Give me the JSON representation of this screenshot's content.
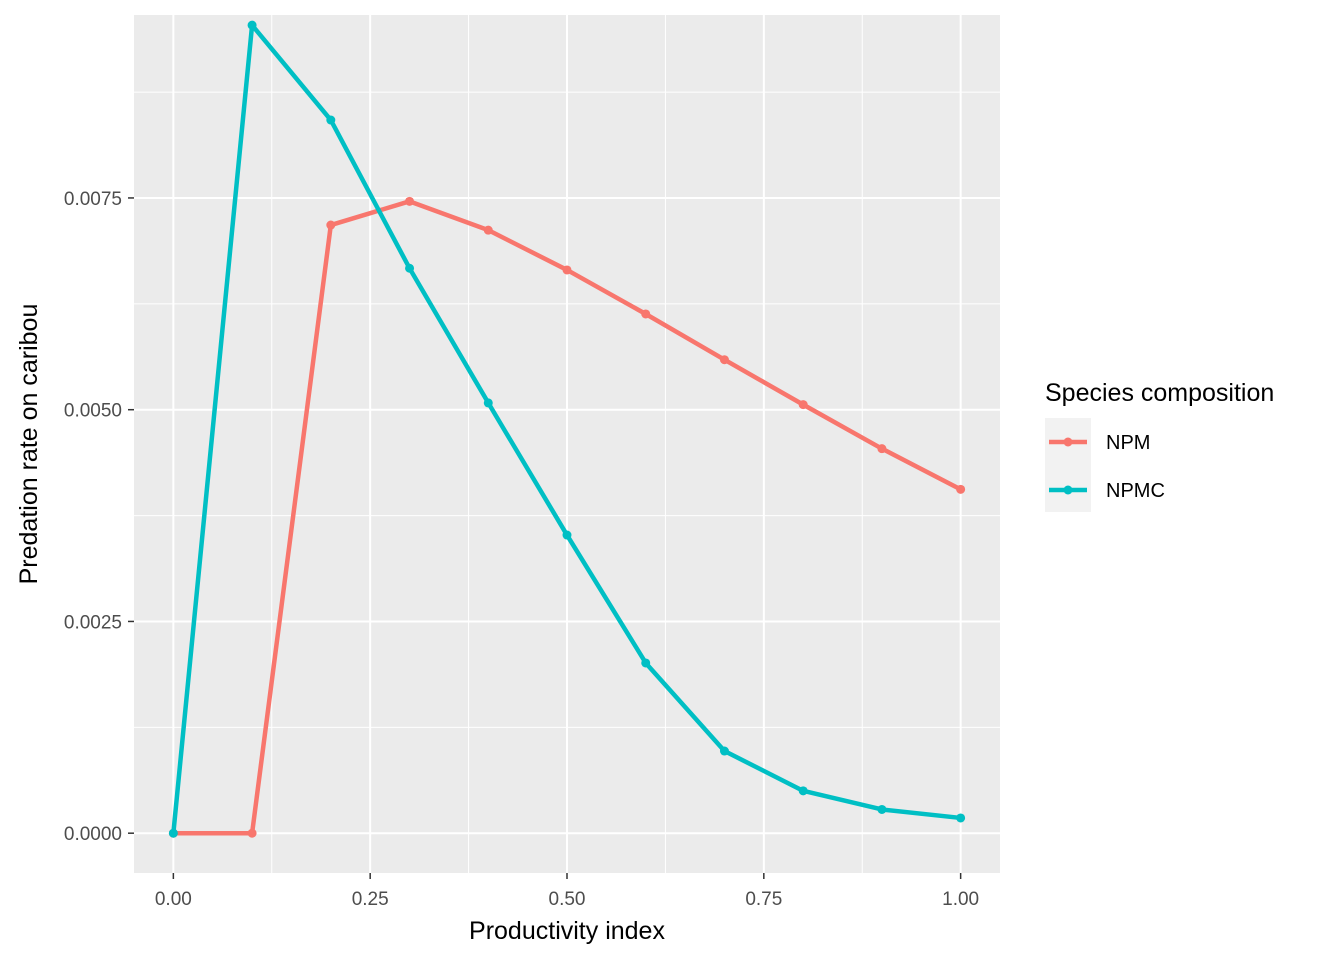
{
  "chart_data": {
    "type": "line",
    "title": "",
    "xlabel": "Productivity index",
    "ylabel": "Predation rate on caribou",
    "x": [
      0.0,
      0.1,
      0.2,
      0.3,
      0.4,
      0.5,
      0.6,
      0.7,
      0.8,
      0.9,
      1.0
    ],
    "xlim": [
      -0.05,
      1.05
    ],
    "ylim": [
      -0.00047,
      0.00966
    ],
    "x_ticks": [
      0.0,
      0.25,
      0.5,
      0.75,
      1.0
    ],
    "x_tick_labels": [
      "0.00",
      "0.25",
      "0.50",
      "0.75",
      "1.00"
    ],
    "y_ticks": [
      0.0,
      0.0025,
      0.005,
      0.0075
    ],
    "y_tick_labels": [
      "0.0000",
      "0.0025",
      "0.0050",
      "0.0075"
    ],
    "grid": true,
    "legend": {
      "title": "Species composition",
      "position": "right"
    },
    "series": [
      {
        "name": "NPM",
        "color": "#F8766D",
        "values": [
          0.0,
          0.0,
          0.00718,
          0.00746,
          0.00712,
          0.00665,
          0.00613,
          0.00559,
          0.00506,
          0.00454,
          0.00406
        ]
      },
      {
        "name": "NPMC",
        "color": "#00BFC4",
        "values": [
          0.0,
          0.00954,
          0.00842,
          0.00667,
          0.00508,
          0.00352,
          0.00201,
          0.00097,
          0.0005,
          0.00028,
          0.00018
        ]
      }
    ]
  }
}
